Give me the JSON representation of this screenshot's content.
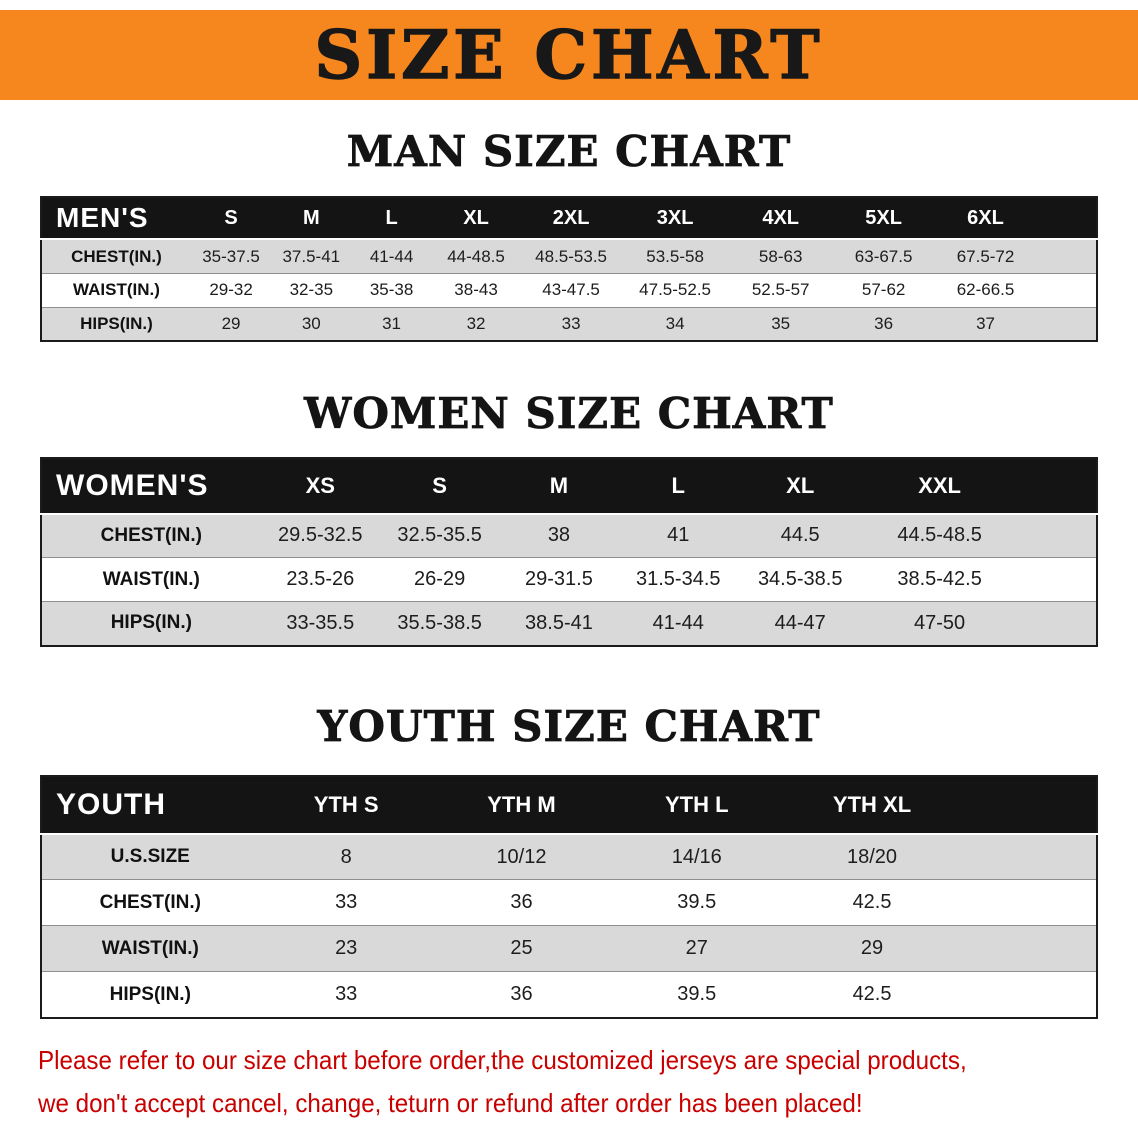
{
  "banner": {
    "title": "SIZE CHART"
  },
  "theme": {
    "banner_bg": "#F6871F",
    "header_bg": "#141414",
    "stripe_gray": "#D9D9D9",
    "disclaimer_red": "#C80000"
  },
  "sections": [
    {
      "id": "men",
      "heading": "MAN SIZE CHART",
      "table": {
        "corner_label": "MEN'S",
        "columns": [
          "S",
          "M",
          "L",
          "XL",
          "2XL",
          "3XL",
          "4XL",
          "5XL",
          "6XL"
        ],
        "rows": [
          {
            "label": "CHEST(IN.)",
            "values": [
              "35-37.5",
              "37.5-41",
              "41-44",
              "44-48.5",
              "48.5-53.5",
              "53.5-58",
              "58-63",
              "63-67.5",
              "67.5-72"
            ]
          },
          {
            "label": "WAIST(IN.)",
            "values": [
              "29-32",
              "32-35",
              "35-38",
              "38-43",
              "43-47.5",
              "47.5-52.5",
              "52.5-57",
              "57-62",
              "62-66.5"
            ]
          },
          {
            "label": "HIPS(IN.)",
            "values": [
              "29",
              "30",
              "31",
              "32",
              "33",
              "34",
              "35",
              "36",
              "37"
            ]
          }
        ]
      }
    },
    {
      "id": "women",
      "heading": "WOMEN SIZE CHART",
      "table": {
        "corner_label": "WOMEN'S",
        "columns": [
          "XS",
          "S",
          "M",
          "L",
          "XL",
          "XXL"
        ],
        "rows": [
          {
            "label": "CHEST(IN.)",
            "values": [
              "29.5-32.5",
              "32.5-35.5",
              "38",
              "41",
              "44.5",
              "44.5-48.5"
            ]
          },
          {
            "label": "WAIST(IN.)",
            "values": [
              "23.5-26",
              "26-29",
              "29-31.5",
              "31.5-34.5",
              "34.5-38.5",
              "38.5-42.5"
            ]
          },
          {
            "label": "HIPS(IN.)",
            "values": [
              "33-35.5",
              "35.5-38.5",
              "38.5-41",
              "41-44",
              "44-47",
              "47-50"
            ]
          }
        ]
      }
    },
    {
      "id": "youth",
      "heading": "YOUTH SIZE CHART",
      "table": {
        "corner_label": "YOUTH",
        "columns": [
          "YTH S",
          "YTH M",
          "YTH L",
          "YTH XL"
        ],
        "rows": [
          {
            "label": "U.S.SIZE",
            "values": [
              "8",
              "10/12",
              "14/16",
              "18/20"
            ]
          },
          {
            "label": "CHEST(IN.)",
            "values": [
              "33",
              "36",
              "39.5",
              "42.5"
            ]
          },
          {
            "label": "WAIST(IN.)",
            "values": [
              "23",
              "25",
              "27",
              "29"
            ]
          },
          {
            "label": "HIPS(IN.)",
            "values": [
              "33",
              "36",
              "39.5",
              "42.5"
            ]
          }
        ]
      }
    }
  ],
  "disclaimer": {
    "lines": [
      "Please refer to our size chart before order,the customized jerseys are special products,",
      "we don't accept cancel, change, teturn or refund after order has been placed!"
    ]
  }
}
